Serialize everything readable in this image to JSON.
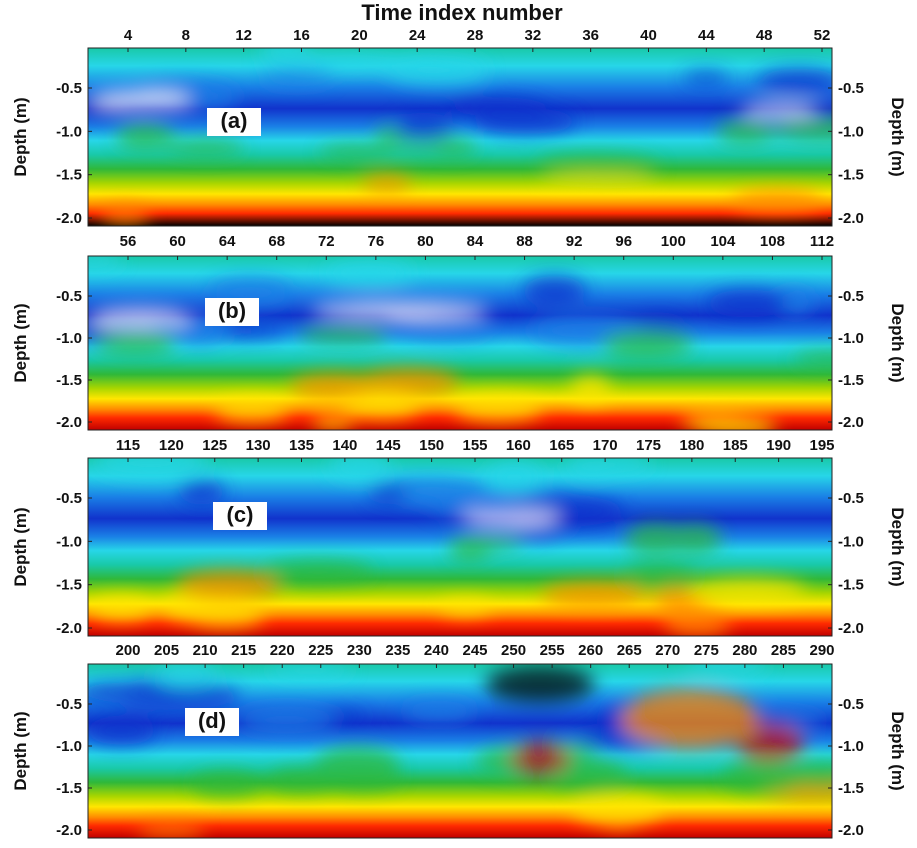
{
  "figure": {
    "title": "Time index number"
  },
  "colors": {
    "scale": [
      "#000000",
      "#c00000",
      "#ff2a00",
      "#ff8c00",
      "#ffe600",
      "#a8d600",
      "#2fb83a",
      "#19c9a8",
      "#27d6e8",
      "#1a7fe6",
      "#1133cc",
      "#ffffff"
    ]
  },
  "chart_data": [
    {
      "type": "heatmap",
      "label": "(a)",
      "x_ticks": [
        "4",
        "8",
        "12",
        "16",
        "20",
        "24",
        "28",
        "32",
        "36",
        "40",
        "44",
        "48",
        "52"
      ],
      "x_range": [
        1,
        54
      ],
      "ylabel": "Depth (m)",
      "y_ticks": [
        "-0.5",
        "-1.0",
        "-1.5",
        "-2.0"
      ],
      "y_range": [
        -0.15,
        -2.05
      ],
      "grid": false
    },
    {
      "type": "heatmap",
      "label": "(b)",
      "x_ticks": [
        "56",
        "60",
        "64",
        "68",
        "72",
        "76",
        "80",
        "84",
        "88",
        "92",
        "96",
        "100",
        "104",
        "108",
        "112"
      ],
      "x_range": [
        55,
        112
      ],
      "ylabel": "Depth (m)",
      "y_ticks": [
        "-0.5",
        "-1.0",
        "-1.5",
        "-2.0"
      ],
      "y_range": [
        -0.15,
        -2.05
      ],
      "grid": false
    },
    {
      "type": "heatmap",
      "label": "(c)",
      "x_ticks": [
        "115",
        "120",
        "125",
        "130",
        "135",
        "140",
        "145",
        "150",
        "155",
        "160",
        "165",
        "170",
        "175",
        "180",
        "185",
        "190",
        "195"
      ],
      "x_range": [
        113,
        197
      ],
      "ylabel": "Depth (m)",
      "y_ticks": [
        "-0.5",
        "-1.0",
        "-1.5",
        "-2.0"
      ],
      "y_range": [
        -0.15,
        -2.05
      ],
      "grid": false
    },
    {
      "type": "heatmap",
      "label": "(d)",
      "x_ticks": [
        "200",
        "205",
        "210",
        "215",
        "220",
        "225",
        "230",
        "235",
        "240",
        "245",
        "250",
        "255",
        "260",
        "265",
        "270",
        "275",
        "280",
        "285",
        "290"
      ],
      "x_range": [
        200,
        290
      ],
      "ylabel": "Depth (m)",
      "y_ticks": [
        "-0.5",
        "-1.0",
        "-1.5",
        "-2.0"
      ],
      "y_range": [
        -0.15,
        -2.05
      ],
      "grid": false
    }
  ]
}
